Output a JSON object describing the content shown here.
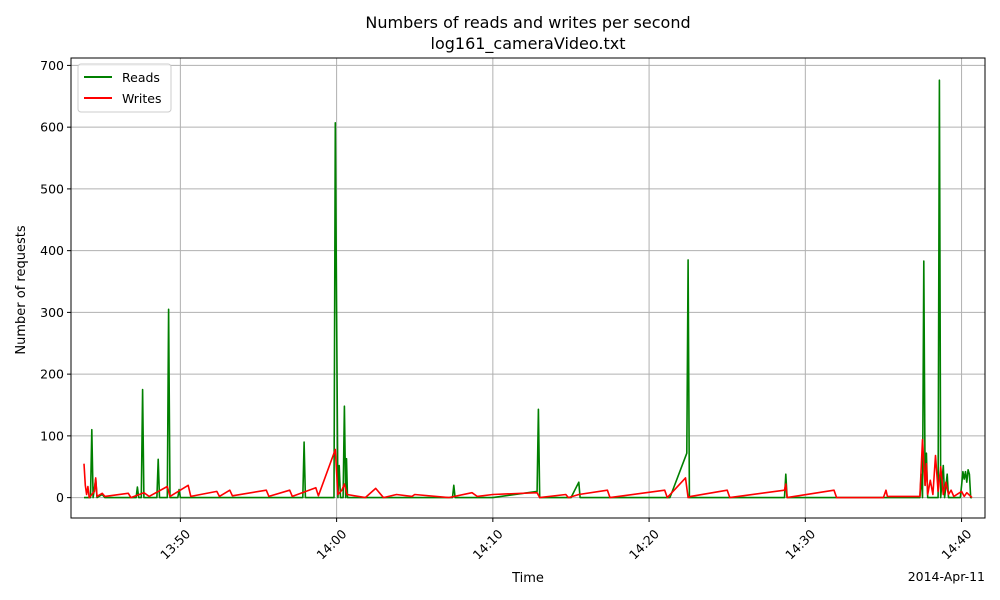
{
  "chart_data": {
    "type": "line",
    "title": "Numbers of reads and writes per second",
    "subtitle": "log161_cameraVideo.txt",
    "xlabel": "Time",
    "ylabel": "Number of requests",
    "date_annotation": "2014-Apr-11",
    "x_range": [
      "13:43:00",
      "14:41:30"
    ],
    "ylim": [
      -33,
      712
    ],
    "x_ticks": [
      "13:50",
      "14:00",
      "14:10",
      "14:20",
      "14:30",
      "14:40"
    ],
    "y_ticks": [
      0,
      100,
      200,
      300,
      400,
      500,
      600,
      700
    ],
    "grid": true,
    "legend": "top-left",
    "series": [
      {
        "name": "Reads",
        "color": "#008000",
        "points": [
          [
            "13:43:50",
            0
          ],
          [
            "13:44:15",
            0
          ],
          [
            "13:44:20",
            110
          ],
          [
            "13:44:25",
            0
          ],
          [
            "13:44:35",
            30
          ],
          [
            "13:44:40",
            0
          ],
          [
            "13:45:00",
            5
          ],
          [
            "13:45:10",
            0
          ],
          [
            "13:47:10",
            0
          ],
          [
            "13:47:15",
            17
          ],
          [
            "13:47:20",
            0
          ],
          [
            "13:47:30",
            0
          ],
          [
            "13:47:35",
            175
          ],
          [
            "13:47:40",
            0
          ],
          [
            "13:48:30",
            0
          ],
          [
            "13:48:35",
            62
          ],
          [
            "13:48:40",
            0
          ],
          [
            "13:49:10",
            0
          ],
          [
            "13:49:15",
            305
          ],
          [
            "13:49:20",
            0
          ],
          [
            "13:49:50",
            0
          ],
          [
            "13:49:55",
            13
          ],
          [
            "13:50:00",
            0
          ],
          [
            "13:57:50",
            0
          ],
          [
            "13:57:55",
            90
          ],
          [
            "13:58:00",
            0
          ],
          [
            "13:59:50",
            0
          ],
          [
            "13:59:55",
            607
          ],
          [
            "14:00:05",
            0
          ],
          [
            "14:00:10",
            52
          ],
          [
            "14:00:15",
            0
          ],
          [
            "14:00:25",
            0
          ],
          [
            "14:00:30",
            148
          ],
          [
            "14:00:35",
            0
          ],
          [
            "14:00:38",
            63
          ],
          [
            "14:00:42",
            0
          ],
          [
            "14:07:25",
            0
          ],
          [
            "14:07:30",
            20
          ],
          [
            "14:07:35",
            0
          ],
          [
            "14:10:00",
            0
          ],
          [
            "14:12:50",
            10
          ],
          [
            "14:12:55",
            143
          ],
          [
            "14:13:00",
            0
          ],
          [
            "14:15:00",
            0
          ],
          [
            "14:15:30",
            25
          ],
          [
            "14:15:35",
            0
          ],
          [
            "14:21:20",
            0
          ],
          [
            "14:22:25",
            72
          ],
          [
            "14:22:30",
            385
          ],
          [
            "14:22:35",
            0
          ],
          [
            "14:28:40",
            0
          ],
          [
            "14:28:45",
            38
          ],
          [
            "14:28:50",
            0
          ],
          [
            "14:37:20",
            0
          ],
          [
            "14:37:25",
            38
          ],
          [
            "14:37:30",
            0
          ],
          [
            "14:37:35",
            383
          ],
          [
            "14:37:40",
            20
          ],
          [
            "14:37:45",
            72
          ],
          [
            "14:37:50",
            0
          ],
          [
            "14:38:30",
            0
          ],
          [
            "14:38:35",
            676
          ],
          [
            "14:38:40",
            0
          ],
          [
            "14:38:50",
            52
          ],
          [
            "14:38:55",
            0
          ],
          [
            "14:39:05",
            38
          ],
          [
            "14:39:10",
            0
          ],
          [
            "14:39:55",
            0
          ],
          [
            "14:40:00",
            20
          ],
          [
            "14:40:05",
            42
          ],
          [
            "14:40:10",
            30
          ],
          [
            "14:40:15",
            42
          ],
          [
            "14:40:20",
            25
          ],
          [
            "14:40:25",
            45
          ],
          [
            "14:40:30",
            38
          ],
          [
            "14:40:35",
            0
          ],
          [
            "14:40:40",
            0
          ]
        ]
      },
      {
        "name": "Writes",
        "color": "#ff0000",
        "points": [
          [
            "13:43:50",
            55
          ],
          [
            "13:43:55",
            20
          ],
          [
            "13:44:00",
            5
          ],
          [
            "13:44:05",
            18
          ],
          [
            "13:44:10",
            0
          ],
          [
            "13:44:30",
            10
          ],
          [
            "13:44:35",
            32
          ],
          [
            "13:44:40",
            2
          ],
          [
            "13:45:00",
            7
          ],
          [
            "13:45:10",
            2
          ],
          [
            "13:46:40",
            7
          ],
          [
            "13:46:50",
            0
          ],
          [
            "13:47:40",
            8
          ],
          [
            "13:48:00",
            2
          ],
          [
            "13:49:10",
            18
          ],
          [
            "13:49:20",
            2
          ],
          [
            "13:50:30",
            20
          ],
          [
            "13:50:40",
            2
          ],
          [
            "13:52:20",
            10
          ],
          [
            "13:52:30",
            2
          ],
          [
            "13:53:10",
            12
          ],
          [
            "13:53:20",
            3
          ],
          [
            "13:55:30",
            12
          ],
          [
            "13:55:40",
            2
          ],
          [
            "13:57:00",
            12
          ],
          [
            "13:57:10",
            2
          ],
          [
            "13:58:40",
            16
          ],
          [
            "13:58:50",
            3
          ],
          [
            "13:59:55",
            78
          ],
          [
            "14:00:05",
            5
          ],
          [
            "14:00:20",
            12
          ],
          [
            "14:00:30",
            22
          ],
          [
            "14:00:40",
            5
          ],
          [
            "14:01:50",
            0
          ],
          [
            "14:02:30",
            15
          ],
          [
            "14:03:00",
            0
          ],
          [
            "14:03:50",
            5
          ],
          [
            "14:04:50",
            2
          ],
          [
            "14:05:00",
            5
          ],
          [
            "14:07:10",
            0
          ],
          [
            "14:08:40",
            8
          ],
          [
            "14:09:00",
            2
          ],
          [
            "14:10:00",
            5
          ],
          [
            "14:12:50",
            8
          ],
          [
            "14:13:00",
            0
          ],
          [
            "14:14:40",
            5
          ],
          [
            "14:14:50",
            0
          ],
          [
            "14:15:30",
            5
          ],
          [
            "14:17:20",
            12
          ],
          [
            "14:17:30",
            0
          ],
          [
            "14:21:00",
            12
          ],
          [
            "14:21:10",
            0
          ],
          [
            "14:22:20",
            32
          ],
          [
            "14:22:30",
            0
          ],
          [
            "14:22:40",
            2
          ],
          [
            "14:25:00",
            12
          ],
          [
            "14:25:10",
            0
          ],
          [
            "14:28:40",
            12
          ],
          [
            "14:28:45",
            22
          ],
          [
            "14:28:50",
            0
          ],
          [
            "14:31:50",
            12
          ],
          [
            "14:32:00",
            0
          ],
          [
            "14:35:00",
            0
          ],
          [
            "14:35:10",
            12
          ],
          [
            "14:35:15",
            2
          ],
          [
            "14:37:20",
            2
          ],
          [
            "14:37:30",
            94
          ],
          [
            "14:37:40",
            20
          ],
          [
            "14:37:45",
            55
          ],
          [
            "14:37:50",
            5
          ],
          [
            "14:38:00",
            28
          ],
          [
            "14:38:10",
            5
          ],
          [
            "14:38:20",
            68
          ],
          [
            "14:38:30",
            10
          ],
          [
            "14:38:40",
            50
          ],
          [
            "14:38:50",
            5
          ],
          [
            "14:39:00",
            25
          ],
          [
            "14:39:10",
            5
          ],
          [
            "14:39:20",
            12
          ],
          [
            "14:39:30",
            2
          ],
          [
            "14:40:00",
            10
          ],
          [
            "14:40:10",
            2
          ],
          [
            "14:40:20",
            8
          ],
          [
            "14:40:40",
            0
          ]
        ]
      }
    ]
  }
}
